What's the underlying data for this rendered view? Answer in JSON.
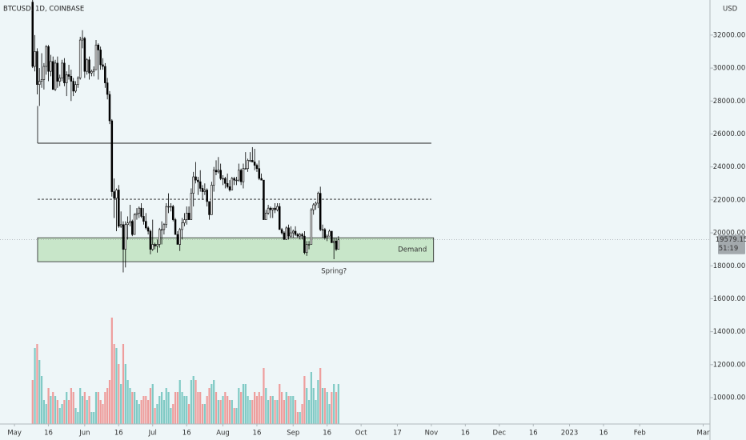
{
  "chart_data": {
    "type": "candlestick",
    "title": "BTCUSD, 1D, COINBASE",
    "currency": "USD",
    "xlim": [
      -6.4,
      307
    ],
    "xticks": [
      {
        "value": 0,
        "label": "May"
      },
      {
        "value": 15,
        "label": "16"
      },
      {
        "value": 31,
        "label": "Jun"
      },
      {
        "value": 46,
        "label": "16"
      },
      {
        "value": 61,
        "label": "Jul"
      },
      {
        "value": 76,
        "label": "16"
      },
      {
        "value": 92,
        "label": "Aug"
      },
      {
        "value": 107,
        "label": "16"
      },
      {
        "value": 123,
        "label": "Sep"
      },
      {
        "value": 138,
        "label": "16"
      },
      {
        "value": 153,
        "label": "Oct"
      },
      {
        "value": 169,
        "label": "17"
      },
      {
        "value": 184,
        "label": "Nov"
      },
      {
        "value": 199,
        "label": "16"
      },
      {
        "value": 214,
        "label": "Dec"
      },
      {
        "value": 229,
        "label": "16"
      },
      {
        "value": 245,
        "label": "2023"
      },
      {
        "value": 260,
        "label": "16"
      },
      {
        "value": 276,
        "label": "Feb"
      },
      {
        "value": 304,
        "label": "Mar"
      }
    ],
    "ylim": [
      8400,
      34130
    ],
    "yticks": [
      {
        "value": 10000,
        "label": "10000.00"
      },
      {
        "value": 12000,
        "label": "12000.00"
      },
      {
        "value": 14000,
        "label": "14000.00"
      },
      {
        "value": 16000,
        "label": "16000.00"
      },
      {
        "value": 18000,
        "label": "18000.00"
      },
      {
        "value": 20000,
        "label": "20000.00"
      },
      {
        "value": 22000,
        "label": "22000.00"
      },
      {
        "value": 24000,
        "label": "24000.00"
      },
      {
        "value": 26000,
        "label": "26000.00"
      },
      {
        "value": 28000,
        "label": "28000.00"
      },
      {
        "value": 30000,
        "label": "30000.00"
      },
      {
        "value": 32000,
        "label": "32000.00"
      }
    ],
    "up_color": "#ffffff",
    "down_color": "#000000",
    "volume_up_color": "#26a69a",
    "volume_down_color": "#ef5350",
    "candles": [
      [
        34000,
        34300,
        30000,
        30100
      ],
      [
        30100,
        32000,
        29800,
        31000
      ],
      [
        31000,
        31200,
        28400,
        29000
      ],
      [
        29000,
        30000,
        27700,
        29200
      ],
      [
        29200,
        30900,
        28800,
        29300
      ],
      [
        29300,
        30300,
        28700,
        30100
      ],
      [
        30100,
        31400,
        29600,
        31300
      ],
      [
        31300,
        31400,
        29200,
        29800
      ],
      [
        29800,
        30800,
        29500,
        30400
      ],
      [
        30400,
        30700,
        28700,
        28700
      ],
      [
        28700,
        30500,
        28600,
        30300
      ],
      [
        30300,
        30700,
        28800,
        29200
      ],
      [
        29200,
        29600,
        28900,
        29400
      ],
      [
        29400,
        30500,
        29200,
        30300
      ],
      [
        30300,
        30600,
        28900,
        29100
      ],
      [
        29100,
        29800,
        28300,
        29600
      ],
      [
        29600,
        30200,
        29300,
        29500
      ],
      [
        29500,
        29900,
        28000,
        29200
      ],
      [
        29200,
        29400,
        28300,
        28600
      ],
      [
        28600,
        29200,
        28500,
        29000
      ],
      [
        29000,
        29500,
        28800,
        29400
      ],
      [
        29400,
        31900,
        29300,
        31700
      ],
      [
        31700,
        32300,
        31200,
        31800
      ],
      [
        31800,
        31900,
        29400,
        29800
      ],
      [
        29800,
        30600,
        29600,
        30500
      ],
      [
        30500,
        30700,
        29300,
        29700
      ],
      [
        29700,
        29900,
        29500,
        29800
      ],
      [
        29800,
        30100,
        29500,
        29900
      ],
      [
        29900,
        31700,
        29900,
        31400
      ],
      [
        31400,
        31500,
        29300,
        31100
      ],
      [
        31100,
        31300,
        29900,
        30200
      ],
      [
        30200,
        30600,
        29900,
        30100
      ],
      [
        30100,
        30300,
        28800,
        29100
      ],
      [
        29100,
        29400,
        28100,
        28400
      ],
      [
        28400,
        28600,
        26600,
        26800
      ],
      [
        26800,
        26900,
        22200,
        22500
      ],
      [
        22500,
        23300,
        20900,
        22100
      ],
      [
        22100,
        22700,
        20100,
        22600
      ],
      [
        22600,
        22900,
        20300,
        20400
      ],
      [
        20400,
        21300,
        20300,
        20500
      ],
      [
        20500,
        20700,
        17600,
        19000
      ],
      [
        19000,
        20700,
        17900,
        20500
      ],
      [
        20500,
        21000,
        19600,
        20600
      ],
      [
        20600,
        21700,
        20400,
        20700
      ],
      [
        20700,
        20800,
        19800,
        19900
      ],
      [
        19900,
        21200,
        19900,
        21100
      ],
      [
        21100,
        21500,
        20800,
        21200
      ],
      [
        21200,
        21600,
        20900,
        21500
      ],
      [
        21500,
        21800,
        20900,
        21000
      ],
      [
        21000,
        21500,
        20500,
        20700
      ],
      [
        20700,
        21200,
        20200,
        20300
      ],
      [
        20300,
        20400,
        19900,
        20100
      ],
      [
        20100,
        20200,
        18700,
        19000
      ],
      [
        19000,
        20800,
        18900,
        19300
      ],
      [
        19300,
        19400,
        19000,
        19200
      ],
      [
        19200,
        19600,
        18800,
        19300
      ],
      [
        19300,
        20300,
        19100,
        20200
      ],
      [
        20200,
        20700,
        19300,
        20200
      ],
      [
        20200,
        20600,
        19900,
        20500
      ],
      [
        20500,
        21800,
        20300,
        21600
      ],
      [
        21600,
        22400,
        21200,
        21600
      ],
      [
        21600,
        21800,
        21300,
        21600
      ],
      [
        21600,
        21700,
        20700,
        20800
      ],
      [
        20800,
        20900,
        19900,
        19900
      ],
      [
        19900,
        20100,
        19300,
        19300
      ],
      [
        19300,
        20300,
        18900,
        20200
      ],
      [
        20200,
        20900,
        19600,
        20600
      ],
      [
        20600,
        21200,
        20400,
        20800
      ],
      [
        20800,
        21600,
        20500,
        21200
      ],
      [
        21200,
        21600,
        20800,
        20800
      ],
      [
        20800,
        22700,
        20800,
        22400
      ],
      [
        22400,
        23700,
        21600,
        23400
      ],
      [
        23400,
        24300,
        23000,
        23200
      ],
      [
        23200,
        23400,
        22300,
        23100
      ],
      [
        23100,
        23800,
        22500,
        22700
      ],
      [
        22700,
        22900,
        22000,
        22500
      ],
      [
        22500,
        23000,
        22300,
        22600
      ],
      [
        22600,
        22700,
        21600,
        21900
      ],
      [
        21900,
        21900,
        20800,
        21100
      ],
      [
        21100,
        23100,
        21100,
        22900
      ],
      [
        22900,
        24000,
        22500,
        23800
      ],
      [
        23800,
        24400,
        23500,
        23700
      ],
      [
        23700,
        24600,
        23600,
        23800
      ],
      [
        23800,
        24200,
        23200,
        23300
      ],
      [
        23300,
        23500,
        22900,
        23300
      ],
      [
        23300,
        23400,
        22700,
        23000
      ],
      [
        23000,
        23600,
        22700,
        22800
      ],
      [
        22800,
        23200,
        22500,
        22600
      ],
      [
        22600,
        23400,
        22600,
        23300
      ],
      [
        23300,
        23400,
        22900,
        23200
      ],
      [
        23200,
        23400,
        22900,
        23200
      ],
      [
        23200,
        24200,
        23100,
        23800
      ],
      [
        23800,
        23900,
        22900,
        23100
      ],
      [
        23100,
        24200,
        22700,
        23900
      ],
      [
        23900,
        24900,
        23900,
        23900
      ],
      [
        23900,
        24500,
        23700,
        24400
      ],
      [
        24400,
        24900,
        24300,
        24400
      ],
      [
        24400,
        25200,
        24300,
        24300
      ],
      [
        24300,
        25100,
        23800,
        24100
      ],
      [
        24100,
        24200,
        23700,
        23900
      ],
      [
        23900,
        24400,
        23200,
        23300
      ],
      [
        23300,
        23600,
        23200,
        23200
      ],
      [
        23200,
        23200,
        20800,
        20800
      ],
      [
        20800,
        21400,
        20800,
        21200
      ],
      [
        21200,
        21700,
        21100,
        21500
      ],
      [
        21500,
        21600,
        20900,
        21400
      ],
      [
        21400,
        21500,
        20900,
        21500
      ],
      [
        21500,
        21800,
        21200,
        21400
      ],
      [
        21400,
        21800,
        21300,
        21600
      ],
      [
        21600,
        21800,
        20200,
        20200
      ],
      [
        20200,
        20300,
        19900,
        20000
      ],
      [
        20000,
        20100,
        19600,
        19600
      ],
      [
        19600,
        20400,
        19600,
        20300
      ],
      [
        20300,
        20500,
        19600,
        19800
      ],
      [
        19800,
        20400,
        19700,
        20000
      ],
      [
        20000,
        20200,
        19700,
        20100
      ],
      [
        20100,
        20400,
        19800,
        19900
      ],
      [
        19900,
        20000,
        19700,
        19800
      ],
      [
        19800,
        20000,
        19600,
        19900
      ],
      [
        19900,
        20000,
        19600,
        19800
      ],
      [
        19800,
        20100,
        18700,
        18800
      ],
      [
        18800,
        19500,
        18600,
        19300
      ],
      [
        19300,
        19500,
        19000,
        19300
      ],
      [
        19300,
        21500,
        19300,
        21400
      ],
      [
        21400,
        21800,
        21100,
        21700
      ],
      [
        21700,
        21900,
        21400,
        21800
      ],
      [
        21800,
        22500,
        21500,
        22400
      ],
      [
        22400,
        22800,
        20100,
        20200
      ],
      [
        20200,
        20500,
        19700,
        20200
      ],
      [
        20200,
        20300,
        19600,
        19700
      ],
      [
        19700,
        19900,
        19500,
        19800
      ],
      [
        19800,
        20200,
        19800,
        20100
      ],
      [
        20100,
        20100,
        19400,
        19400
      ],
      [
        19400,
        19700,
        18400,
        19500
      ],
      [
        19500,
        19700,
        18900,
        19000
      ],
      [
        19000,
        19800,
        19000,
        19579.15
      ]
    ],
    "volume": [
      55,
      95,
      100,
      80,
      60,
      30,
      25,
      45,
      35,
      40,
      35,
      30,
      20,
      25,
      30,
      40,
      30,
      45,
      40,
      20,
      15,
      45,
      35,
      40,
      30,
      35,
      15,
      15,
      40,
      40,
      30,
      25,
      40,
      45,
      55,
      133,
      100,
      95,
      75,
      50,
      100,
      75,
      55,
      45,
      40,
      40,
      30,
      25,
      30,
      35,
      35,
      30,
      45,
      50,
      20,
      25,
      35,
      40,
      30,
      45,
      40,
      20,
      25,
      40,
      40,
      55,
      40,
      35,
      35,
      25,
      55,
      60,
      55,
      40,
      40,
      25,
      25,
      35,
      45,
      50,
      55,
      40,
      30,
      30,
      35,
      40,
      35,
      30,
      30,
      20,
      20,
      45,
      40,
      50,
      50,
      35,
      30,
      30,
      40,
      35,
      40,
      35,
      70,
      45,
      30,
      35,
      35,
      30,
      30,
      50,
      40,
      30,
      40,
      35,
      35,
      35,
      30,
      15,
      15,
      25,
      60,
      45,
      30,
      65,
      45,
      30,
      55,
      70,
      45,
      45,
      40,
      25,
      40,
      50,
      40,
      50
    ],
    "resistance": 25440,
    "midline": 22040,
    "demand_zone": [
      18250,
      19700
    ],
    "demand_label": "Demand",
    "spring_label": "Spring?",
    "last_price": 19579.15,
    "countdown": "51:19"
  }
}
